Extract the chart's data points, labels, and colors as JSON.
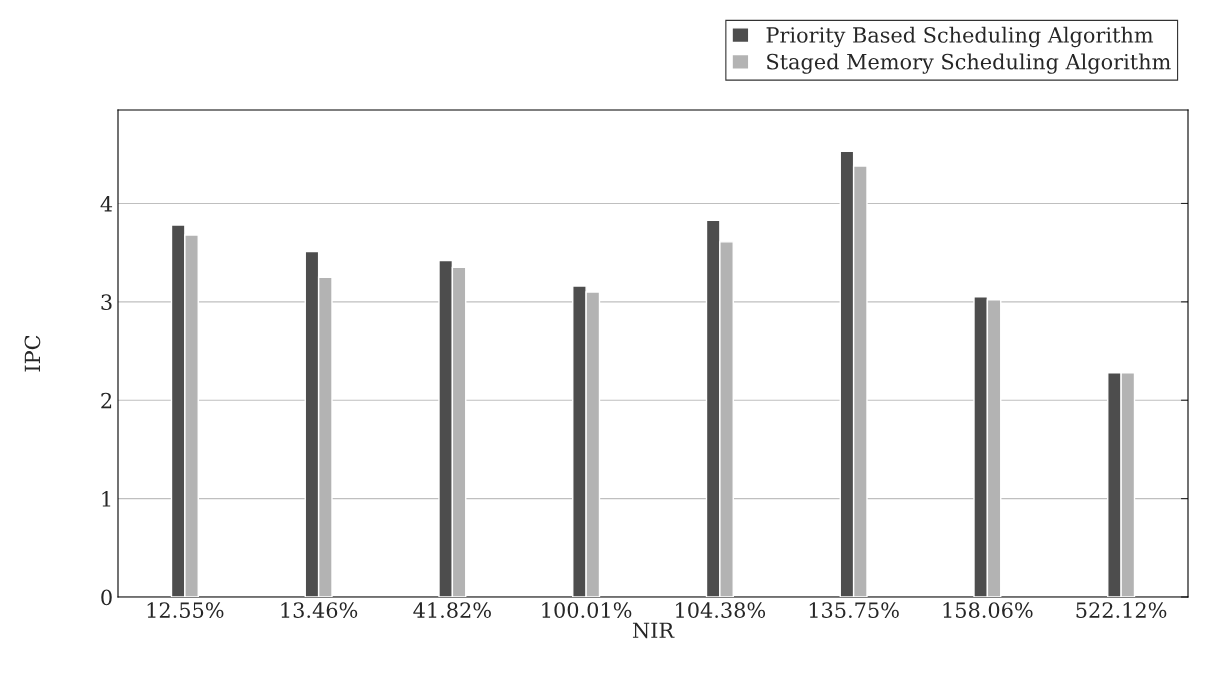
{
  "chart_data": {
    "type": "bar",
    "xlabel": "NIR",
    "ylabel": "IPC",
    "categories": [
      "12.55%",
      "13.46%",
      "41.82%",
      "100.01%",
      "104.38%",
      "135.75%",
      "158.06%",
      "522.12%"
    ],
    "series": [
      {
        "name": "Priority Based Scheduling Algorithm",
        "color": "#4d4d4d",
        "values": [
          3.78,
          3.51,
          3.42,
          3.16,
          3.83,
          4.53,
          3.05,
          2.28
        ]
      },
      {
        "name": "Staged Memory Scheduling Algorithm",
        "color": "#b3b3b3",
        "values": [
          3.68,
          3.25,
          3.35,
          3.1,
          3.61,
          4.38,
          3.02,
          2.28
        ]
      }
    ],
    "ylim": [
      0,
      4.95
    ],
    "yticks": [
      0,
      1,
      2,
      3,
      4
    ],
    "grid": "y",
    "legend": "top right"
  }
}
